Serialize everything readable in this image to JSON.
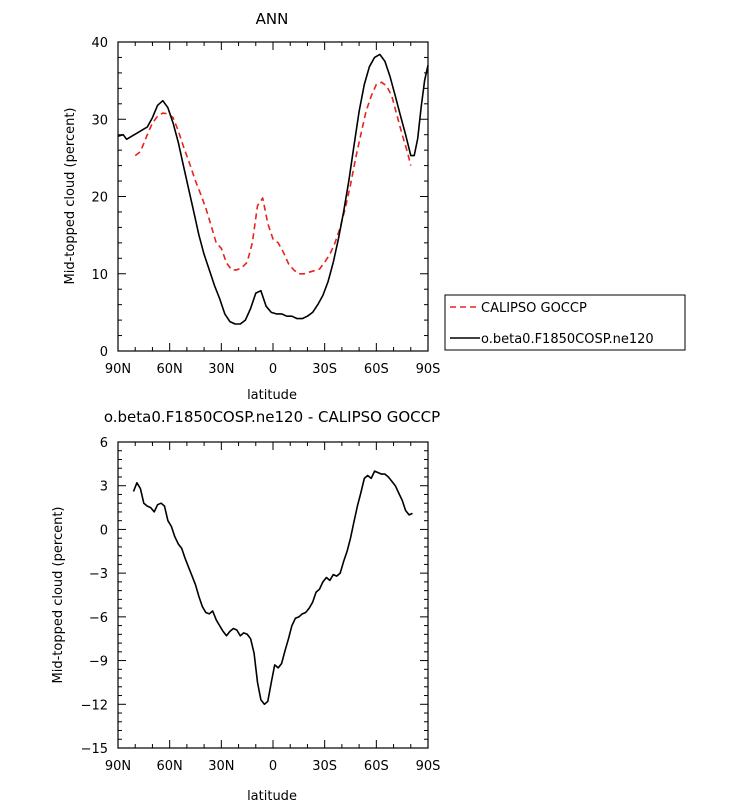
{
  "chart_data": [
    {
      "type": "line",
      "title": "ANN",
      "xlabel": "latitude",
      "ylabel": "Mid-topped cloud (percent)",
      "xticks": [
        "90N",
        "60N",
        "30N",
        "0",
        "30S",
        "60S",
        "90S"
      ],
      "xlim": [
        90,
        -90
      ],
      "ylim": [
        0,
        40
      ],
      "yticks": [
        0,
        10,
        20,
        30,
        40
      ],
      "legend_position": "right",
      "series": [
        {
          "name": "CALIPSO GOCCP",
          "color": "#e8231d",
          "dash": "dashed",
          "x": [
            80,
            77,
            73,
            70,
            67,
            64,
            61,
            58,
            55,
            52,
            48,
            45,
            42,
            39,
            36,
            33,
            30,
            27,
            24,
            21,
            18,
            15,
            12,
            9,
            6,
            3,
            0,
            -3,
            -6,
            -9,
            -12,
            -15,
            -18,
            -21,
            -24,
            -27,
            -30,
            -33,
            -36,
            -39,
            -42,
            -45,
            -48,
            -51,
            -54,
            -57,
            -60,
            -63,
            -66,
            -69,
            -72,
            -75,
            -78,
            -80
          ],
          "y": [
            25.3,
            25.8,
            28,
            29.5,
            30.4,
            30.8,
            30.7,
            30.2,
            28.5,
            26.5,
            24,
            22,
            20.3,
            18.5,
            16.3,
            14,
            13.3,
            11.4,
            10.5,
            10.5,
            10.8,
            11.5,
            14,
            18.8,
            19.8,
            16.5,
            14.5,
            14,
            12.8,
            11.3,
            10.5,
            10,
            10,
            10.2,
            10.4,
            10.6,
            11.5,
            12.5,
            14,
            16,
            18.5,
            21.5,
            25,
            28,
            31,
            33,
            34.5,
            34.8,
            34.3,
            33,
            30.5,
            28,
            25.8,
            24
          ]
        },
        {
          "name": "o.beta0.F1850COSP.ne120",
          "color": "#000000",
          "dash": "solid",
          "x": [
            90,
            87,
            85,
            82,
            79,
            76,
            73,
            70,
            67,
            64,
            61,
            58,
            55,
            52,
            49,
            46,
            43,
            40,
            37,
            34,
            31,
            28,
            25,
            22,
            19,
            16,
            13,
            10,
            7,
            4,
            1,
            -2,
            -5,
            -8,
            -11,
            -14,
            -17,
            -20,
            -23,
            -26,
            -29,
            -32,
            -35,
            -38,
            -41,
            -44,
            -47,
            -50,
            -53,
            -56,
            -59,
            -62,
            -65,
            -68,
            -71,
            -74,
            -77,
            -80,
            -82,
            -84,
            -86,
            -88,
            -90
          ],
          "y": [
            27.8,
            28,
            27.4,
            27.8,
            28.2,
            28.6,
            29,
            30.2,
            31.8,
            32.4,
            31.5,
            29.5,
            27,
            24,
            21,
            18,
            15,
            12.5,
            10.5,
            8.5,
            6.8,
            4.8,
            3.8,
            3.5,
            3.5,
            4,
            5.5,
            7.5,
            7.8,
            5.8,
            5,
            4.8,
            4.8,
            4.5,
            4.5,
            4.2,
            4.2,
            4.5,
            5,
            6,
            7.2,
            9,
            11.5,
            14.5,
            18,
            22,
            26.5,
            31,
            34.5,
            36.8,
            38,
            38.4,
            37.5,
            35.5,
            33,
            30.5,
            28,
            25.3,
            25.3,
            27.5,
            31.5,
            35,
            37
          ]
        }
      ]
    },
    {
      "type": "line",
      "title": "o.beta0.F1850COSP.ne120 - CALIPSO GOCCP",
      "xlabel": "latitude",
      "ylabel": "Mid-topped cloud (percent)",
      "xticks": [
        "90N",
        "60N",
        "30N",
        "0",
        "30S",
        "60S",
        "90S"
      ],
      "xlim": [
        90,
        -90
      ],
      "ylim": [
        -15,
        6
      ],
      "yticks": [
        -15,
        -12,
        -9,
        -6,
        -3,
        0,
        3,
        6
      ],
      "series": [
        {
          "color": "#000000",
          "dash": "solid",
          "x": [
            81,
            79,
            77,
            75,
            73,
            71,
            69,
            67,
            65,
            63,
            61,
            59,
            57,
            55,
            53,
            51,
            49,
            47,
            45,
            43,
            41,
            39,
            37,
            35,
            33,
            31,
            29,
            27,
            25,
            23,
            21,
            19,
            17,
            15,
            13,
            11,
            9,
            7,
            5,
            3,
            1,
            -1,
            -3,
            -5,
            -7,
            -9,
            -11,
            -13,
            -15,
            -17,
            -19,
            -21,
            -23,
            -25,
            -27,
            -29,
            -31,
            -33,
            -35,
            -37,
            -39,
            -41,
            -43,
            -45,
            -47,
            -49,
            -51,
            -53,
            -55,
            -57,
            -59,
            -61,
            -63,
            -65,
            -67,
            -69,
            -71,
            -73,
            -75,
            -77,
            -79,
            -81
          ],
          "y": [
            2.6,
            3.2,
            2.8,
            1.8,
            1.6,
            1.5,
            1.2,
            1.7,
            1.8,
            1.6,
            0.6,
            0.2,
            -0.5,
            -1.0,
            -1.3,
            -2.0,
            -2.6,
            -3.2,
            -3.8,
            -4.6,
            -5.3,
            -5.7,
            -5.8,
            -5.6,
            -6.2,
            -6.6,
            -7.0,
            -7.3,
            -7.0,
            -6.8,
            -6.9,
            -7.3,
            -7.1,
            -7.2,
            -7.5,
            -8.5,
            -10.5,
            -11.7,
            -12.0,
            -11.8,
            -10.5,
            -9.3,
            -9.5,
            -9.2,
            -8.3,
            -7.5,
            -6.6,
            -6.1,
            -6.0,
            -5.8,
            -5.7,
            -5.4,
            -5.0,
            -4.3,
            -4.1,
            -3.6,
            -3.3,
            -3.5,
            -3.1,
            -3.2,
            -3.0,
            -2.2,
            -1.5,
            -0.6,
            0.5,
            1.6,
            2.5,
            3.5,
            3.7,
            3.5,
            4.0,
            3.9,
            3.8,
            3.8,
            3.6,
            3.3,
            3.0,
            2.5,
            2.0,
            1.3,
            1.0,
            1.1
          ]
        }
      ]
    }
  ]
}
